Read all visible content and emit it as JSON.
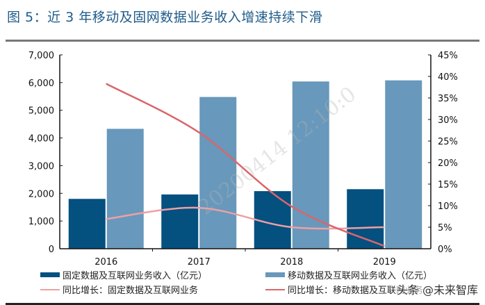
{
  "title": "图  5：近 3 年移动及固网数据业务收入增速持续下滑",
  "watermark": "20200414 12:10:0",
  "source_watermark": "头条 @未来智库",
  "chart_data": {
    "type": "bar+line",
    "categories": [
      "2016",
      "2017",
      "2018",
      "2019"
    ],
    "y_left": {
      "range": [
        0,
        7000
      ],
      "ticks": [
        "0",
        "1,000",
        "2,000",
        "3,000",
        "4,000",
        "5,000",
        "6,000",
        "7,000"
      ]
    },
    "y_right": {
      "range": [
        0,
        45
      ],
      "ticks": [
        "0%",
        "5%",
        "10%",
        "15%",
        "20%",
        "25%",
        "30%",
        "35%",
        "40%",
        "45%"
      ]
    },
    "series": [
      {
        "name": "固定数据及互联网业务收入（亿元）",
        "type": "bar",
        "axis": "left",
        "color": "#04507f",
        "values": [
          1800,
          1960,
          2080,
          2150
        ]
      },
      {
        "name": "移动数据及互联网业务收入（亿元）",
        "type": "bar",
        "axis": "left",
        "color": "#6898bb",
        "values": [
          4330,
          5480,
          6040,
          6080
        ]
      },
      {
        "name": "同比增长：固定数据及互联网业务",
        "type": "line",
        "axis": "right",
        "color": "#eea0a4",
        "values": [
          6.9,
          9.5,
          5.0,
          5.0
        ]
      },
      {
        "name": "同比增长：移动数据及互联网业务",
        "type": "line",
        "axis": "right",
        "color": "#d9666b",
        "values": [
          38.3,
          27.0,
          9.8,
          0.6
        ]
      }
    ],
    "legend_position": "bottom",
    "grid": false
  }
}
